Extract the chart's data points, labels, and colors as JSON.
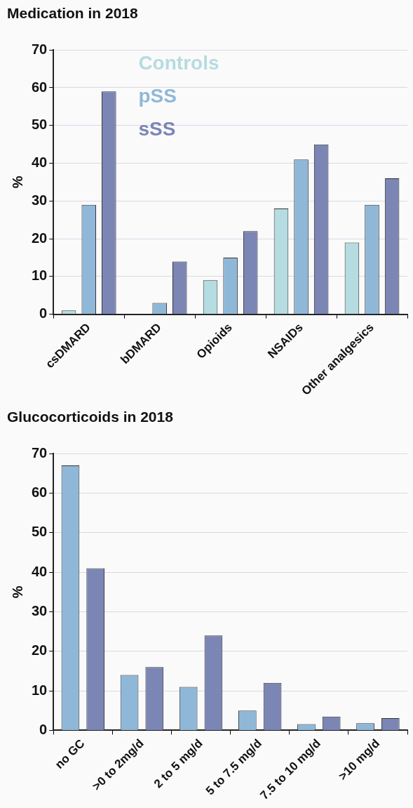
{
  "chart_data": [
    {
      "type": "bar",
      "title": "Medication in 2018",
      "ylabel": "%",
      "categories": [
        "csDMARD",
        "bDMARD",
        "Opioids",
        "NSAIDs",
        "Other analgesics"
      ],
      "series": [
        {
          "name": "Controls",
          "color": "#b5dce0",
          "values": [
            1,
            null,
            9,
            28,
            19
          ]
        },
        {
          "name": "pSS",
          "color": "#8fb8d8",
          "values": [
            29,
            3,
            15,
            41,
            29
          ]
        },
        {
          "name": "sSS",
          "color": "#7b86b5",
          "values": [
            59,
            14,
            22,
            45,
            36
          ]
        }
      ],
      "ylim": [
        0,
        70
      ],
      "yticks": [
        0,
        10,
        20,
        30,
        40,
        50,
        60,
        70
      ],
      "grid": "y",
      "legend": "top"
    },
    {
      "type": "bar",
      "title": "Glucocorticoids in 2018",
      "ylabel": "%",
      "categories": [
        "no GC",
        ">0 to 2mg/d",
        "2 to 5 mg/d",
        "5 to 7.5 mg/d",
        "7.5 to 10 mg/d",
        ">10 mg/d"
      ],
      "series": [
        {
          "color": "#8fb8d8",
          "values": [
            67,
            14,
            11,
            5,
            1.6,
            1.8
          ]
        },
        {
          "color": "#7b86b5",
          "values": [
            41,
            16,
            24,
            12,
            3.5,
            3.1
          ]
        }
      ],
      "ylim": [
        0,
        70
      ],
      "yticks": [
        0,
        10,
        20,
        30,
        40,
        50,
        60,
        70
      ],
      "grid": "y"
    }
  ]
}
